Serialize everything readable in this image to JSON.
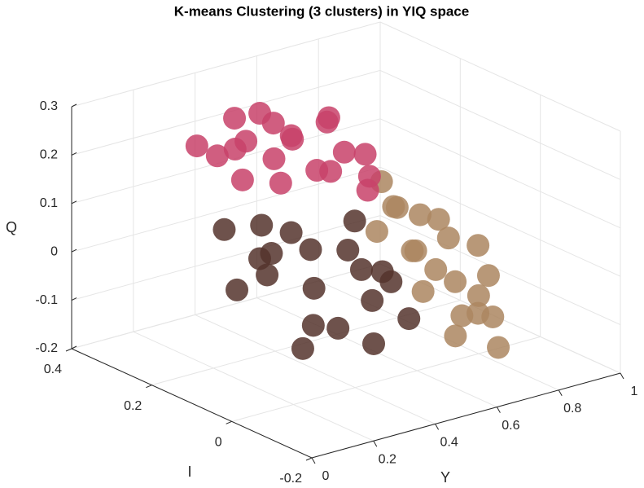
{
  "chart_data": {
    "type": "scatter3d",
    "title": "K-means Clustering (3 clusters) in YIQ space",
    "xlabel": "Y",
    "ylabel": "I",
    "zlabel": "Q",
    "xlim": [
      0,
      1
    ],
    "xticks": [
      0,
      0.2,
      0.4,
      0.6,
      0.8,
      1
    ],
    "ylim": [
      -0.2,
      0.4
    ],
    "yticks": [
      -0.2,
      0,
      0.2,
      0.4
    ],
    "zlim": [
      -0.2,
      0.3
    ],
    "zticks": [
      -0.2,
      -0.1,
      0,
      0.1,
      0.2,
      0.3
    ],
    "grid": true,
    "series": [
      {
        "color": "#ac8660",
        "x": [
          0.6,
          0.65,
          0.7,
          0.75,
          0.8,
          0.68,
          0.72,
          0.78,
          0.62,
          0.66,
          0.74,
          0.82,
          0.7,
          0.76,
          0.64,
          0.85,
          0.72,
          0.8,
          0.68,
          0.78
        ],
        "y": [
          0.1,
          0.05,
          0.08,
          0.02,
          0.0,
          0.12,
          -0.02,
          0.06,
          0.0,
          -0.05,
          0.1,
          -0.02,
          0.03,
          -0.08,
          0.08,
          0.04,
          -0.06,
          0.1,
          0.15,
          -0.04
        ],
        "z": [
          0.05,
          0.02,
          0.0,
          -0.05,
          -0.08,
          0.08,
          -0.1,
          0.02,
          -0.04,
          -0.12,
          0.06,
          -0.12,
          -0.02,
          -0.15,
          0.1,
          0.0,
          -0.08,
          0.04,
          0.12,
          -0.02
        ]
      },
      {
        "color": "#c8426a",
        "x": [
          0.4,
          0.45,
          0.5,
          0.55,
          0.6,
          0.65,
          0.42,
          0.48,
          0.53,
          0.58,
          0.62,
          0.68,
          0.45,
          0.5,
          0.56,
          0.6,
          0.38,
          0.47,
          0.64,
          0.7
        ],
        "y": [
          0.3,
          0.34,
          0.28,
          0.32,
          0.25,
          0.22,
          0.36,
          0.3,
          0.26,
          0.2,
          0.24,
          0.18,
          0.32,
          0.35,
          0.28,
          0.22,
          0.38,
          0.24,
          0.16,
          0.2
        ],
        "z": [
          0.18,
          0.22,
          0.15,
          0.2,
          0.12,
          0.16,
          0.14,
          0.24,
          0.2,
          0.14,
          0.22,
          0.12,
          0.1,
          0.16,
          0.18,
          0.24,
          0.16,
          0.12,
          0.18,
          0.08
        ]
      },
      {
        "color": "#55342d",
        "x": [
          0.3,
          0.35,
          0.4,
          0.45,
          0.5,
          0.55,
          0.38,
          0.42,
          0.48,
          0.52,
          0.33,
          0.44,
          0.58,
          0.6,
          0.36,
          0.46,
          0.54,
          0.4,
          0.62,
          0.5
        ],
        "y": [
          0.25,
          0.2,
          0.22,
          0.15,
          0.18,
          0.1,
          0.28,
          0.12,
          0.08,
          0.05,
          0.18,
          0.24,
          0.14,
          0.02,
          0.1,
          0.0,
          0.04,
          0.16,
          0.08,
          0.12
        ],
        "z": [
          0.05,
          0.0,
          -0.05,
          0.02,
          -0.08,
          -0.02,
          -0.1,
          -0.12,
          0.04,
          -0.06,
          0.08,
          -0.02,
          0.06,
          -0.1,
          -0.15,
          -0.12,
          0.0,
          0.06,
          -0.05,
          -0.14
        ]
      }
    ]
  }
}
